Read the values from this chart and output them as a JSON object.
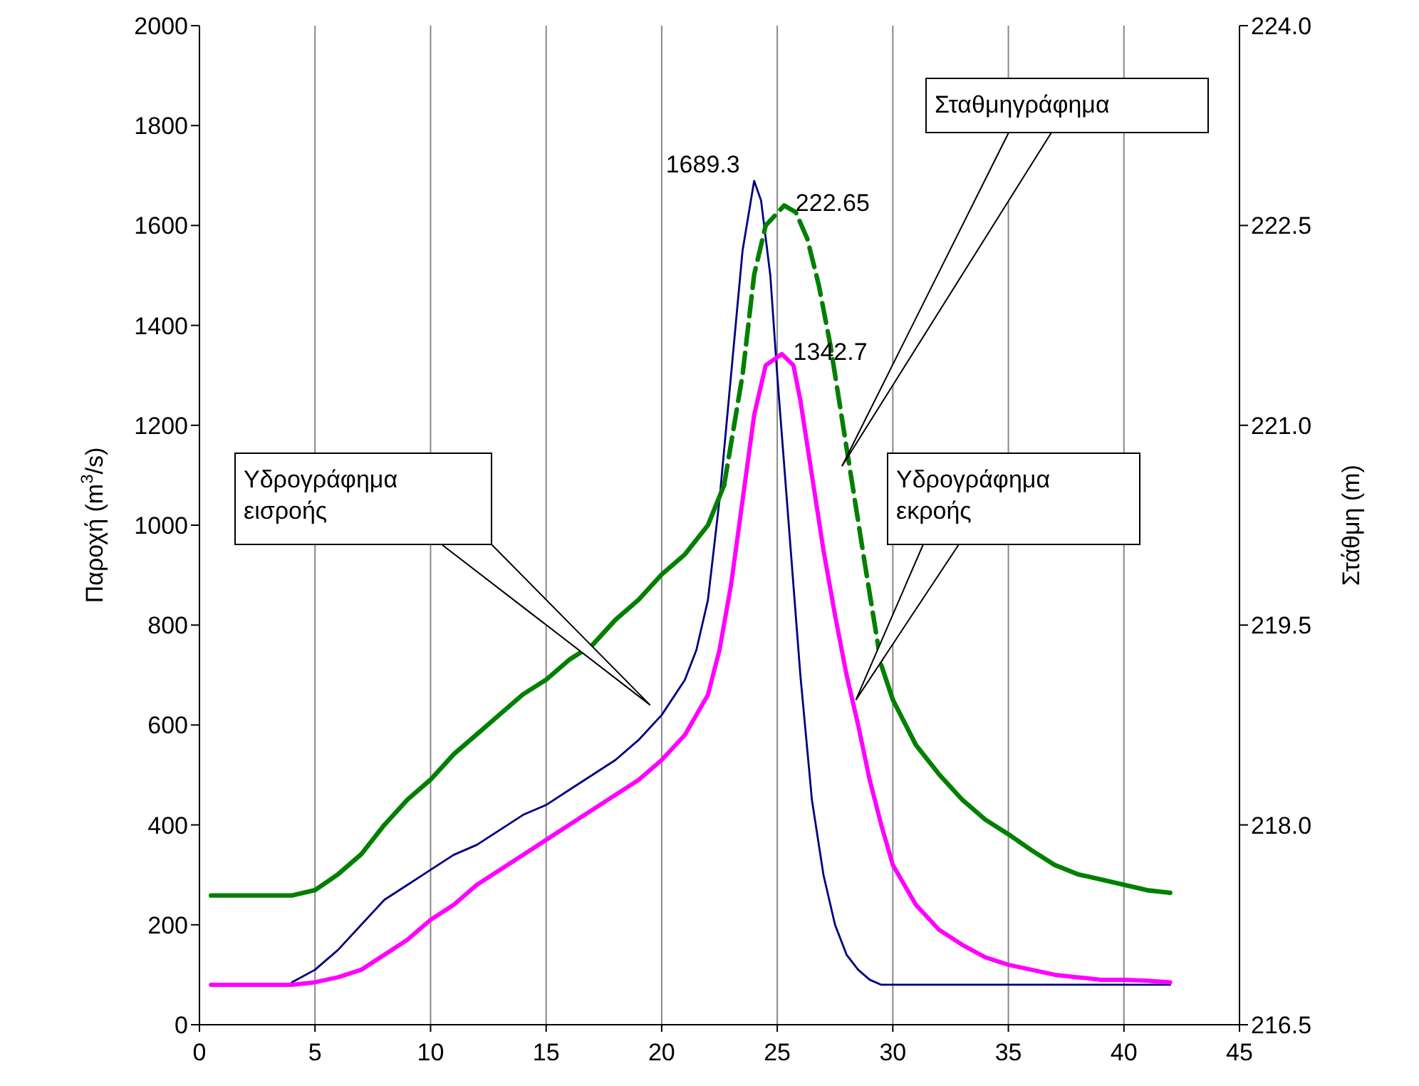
{
  "chart_data": {
    "type": "line",
    "xlim": [
      0,
      45
    ],
    "xticks": [
      0,
      5,
      10,
      15,
      20,
      25,
      30,
      35,
      40,
      45
    ],
    "ylim": [
      0,
      2000
    ],
    "yticks": [
      0,
      200,
      400,
      600,
      800,
      1000,
      1200,
      1400,
      1600,
      1800,
      2000
    ],
    "y2lim": [
      216.5,
      224.0
    ],
    "y2ticks": [
      216.5,
      {
        "value": 218,
        "label": "218.0"
      },
      219.5,
      {
        "value": 221,
        "label": "221.0"
      },
      222.5,
      {
        "value": 224,
        "label": "224.0"
      }
    ],
    "ylabel": "Παροχή (m$^{3}$/s)",
    "y2label": "Στάθμη (m)",
    "grid": "x",
    "legend": false,
    "marker": "none",
    "annotations": [
      "Υδρογράφημα\nεισροής",
      "Σταθμηγράφημα",
      "Υδρογράφημα\nεκροής"
    ],
    "series": [
      {
        "color": "#000080",
        "line_style": "solid",
        "x": [
          4,
          5,
          6,
          7,
          8,
          9,
          10,
          11,
          12,
          13,
          14,
          15,
          16,
          17,
          18,
          19,
          20,
          21,
          21.5,
          22,
          22.5,
          23,
          23.5,
          24,
          24.3,
          24.7,
          25,
          25.5,
          26,
          26.5,
          27,
          27.5,
          28,
          28.5,
          29,
          29.5,
          42
        ],
        "values": [
          85,
          110,
          150,
          200,
          250,
          280,
          310,
          340,
          360,
          390,
          420,
          440,
          470,
          500,
          530,
          570,
          620,
          690,
          750,
          850,
          1050,
          1300,
          1550,
          1689.3,
          1650,
          1500,
          1300,
          1000,
          700,
          450,
          300,
          200,
          140,
          110,
          90,
          80,
          80
        ],
        "value_labels": [
          null,
          null,
          null,
          null,
          null,
          null,
          null,
          null,
          null,
          null,
          null,
          null,
          null,
          null,
          null,
          null,
          null,
          null,
          null,
          null,
          null,
          null,
          null,
          "1689.3",
          null,
          null,
          null,
          null,
          null,
          null,
          null,
          null,
          null,
          null,
          null,
          null,
          null
        ]
      },
      {
        "color": "#ff00ff",
        "line_style": "solid",
        "x": [
          0.5,
          4,
          5,
          6,
          7,
          8,
          9,
          10,
          11,
          12,
          13,
          14,
          15,
          16,
          17,
          18,
          19,
          20,
          21,
          22,
          22.5,
          23,
          23.5,
          24,
          24.5,
          25.2,
          25.7,
          26,
          26.5,
          27,
          27.5,
          28,
          28.5,
          29,
          29.5,
          30,
          31,
          32,
          33,
          34,
          35,
          36,
          37,
          38,
          39,
          40,
          41,
          42
        ],
        "values": [
          80,
          80,
          85,
          95,
          110,
          140,
          170,
          210,
          240,
          280,
          310,
          340,
          370,
          400,
          430,
          460,
          490,
          530,
          580,
          660,
          750,
          880,
          1050,
          1220,
          1320,
          1342.7,
          1320,
          1250,
          1100,
          950,
          820,
          700,
          600,
          490,
          400,
          320,
          240,
          190,
          160,
          135,
          120,
          110,
          100,
          95,
          90,
          90,
          88,
          85
        ],
        "value_labels": [
          null,
          null,
          null,
          null,
          null,
          null,
          null,
          null,
          null,
          null,
          null,
          null,
          null,
          null,
          null,
          null,
          null,
          null,
          null,
          null,
          null,
          null,
          null,
          null,
          null,
          "1342.7",
          null,
          null,
          null,
          null,
          null,
          null,
          null,
          null,
          null,
          null,
          null,
          null,
          null,
          null,
          null,
          null,
          null,
          null,
          null,
          null,
          null,
          null
        ]
      },
      {
        "color": "#008000",
        "axis": "y2",
        "line_style": "solid",
        "x": [
          0.5,
          4,
          5,
          6,
          7,
          8,
          9,
          10,
          11,
          12,
          13,
          14,
          15,
          16,
          17,
          18,
          19,
          20,
          21,
          22,
          22.7
        ],
        "values": [
          217.47,
          217.47,
          217.51,
          217.63,
          217.78,
          218.0,
          218.19,
          218.34,
          218.53,
          218.68,
          218.83,
          218.98,
          219.09,
          219.24,
          219.35,
          219.54,
          219.69,
          219.88,
          220.03,
          220.25,
          220.55
        ]
      },
      {
        "color": "#008000",
        "axis": "y2",
        "line_style": "dashed",
        "x": [
          22.7,
          23.5,
          24,
          24.5,
          25.3,
          25.8,
          26.3,
          26.8,
          27.3,
          27.8,
          28.3,
          28.8,
          29.5
        ],
        "values": [
          220.55,
          221.38,
          222.13,
          222.5,
          222.65,
          222.6,
          222.4,
          222.05,
          221.6,
          221.05,
          220.5,
          219.95,
          219.2
        ],
        "value_labels": [
          null,
          null,
          null,
          null,
          "222.65",
          null,
          null,
          null,
          null,
          null,
          null,
          null,
          null
        ]
      },
      {
        "color": "#008000",
        "axis": "y2",
        "line_style": "solid",
        "x": [
          29.5,
          30,
          31,
          32,
          33,
          34,
          35,
          36,
          37,
          38,
          39,
          40,
          41,
          42
        ],
        "values": [
          219.2,
          218.94,
          218.6,
          218.38,
          218.19,
          218.04,
          217.93,
          217.81,
          217.7,
          217.63,
          217.59,
          217.55,
          217.51,
          217.49
        ]
      }
    ]
  }
}
